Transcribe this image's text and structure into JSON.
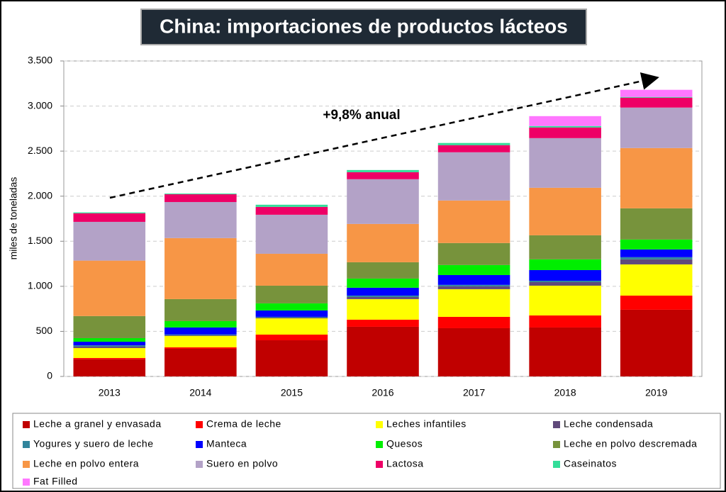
{
  "chart_data": {
    "type": "stacked-bar",
    "title": "China: importaciones de productos lácteos",
    "y_label": "miles de toneladas",
    "annotation": "+9,8% anual",
    "categories": [
      "2013",
      "2014",
      "2015",
      "2016",
      "2017",
      "2018",
      "2019"
    ],
    "ylim": [
      0,
      3500
    ],
    "yticks": [
      0,
      500,
      {
        "value": 1000,
        "label": "1.000"
      },
      {
        "value": 1500,
        "label": "1.500"
      },
      {
        "value": 2000,
        "label": "2.000"
      },
      {
        "value": 2500,
        "label": "2.500"
      },
      {
        "value": 3000,
        "label": "3.000"
      },
      {
        "value": 3500,
        "label": "3.500"
      }
    ],
    "grid": true,
    "series": [
      {
        "name": "Leche a granel y envasada",
        "color": "#c00000",
        "values": [
          190,
          307,
          401,
          551,
          535,
          543,
          740
        ]
      },
      {
        "name": "Crema de leche",
        "color": "#ff0000",
        "values": [
          15,
          16,
          63,
          79,
          126,
          134,
          157
        ]
      },
      {
        "name": "Leches infantiles",
        "color": "#ffff00",
        "values": [
          110,
          126,
          181,
          228,
          307,
          330,
          346
        ]
      },
      {
        "name": "Leche condensada",
        "color": "#604a7b",
        "values": [
          15,
          8,
          8,
          23,
          32,
          39,
          56
        ]
      },
      {
        "name": "Yogures y suero de leche",
        "color": "#31859c",
        "values": [
          15,
          8,
          8,
          16,
          16,
          16,
          24
        ]
      },
      {
        "name": "Manteca",
        "color": "#0000ff",
        "values": [
          40,
          78,
          71,
          87,
          109,
          118,
          86
        ]
      },
      {
        "name": "Quesos",
        "color": "#00ee00",
        "values": [
          40,
          71,
          79,
          102,
          111,
          119,
          110
        ]
      },
      {
        "name": "Leche en polvo descremada",
        "color": "#77933c",
        "values": [
          245,
          244,
          196,
          181,
          244,
          267,
          346
        ]
      },
      {
        "name": "Leche en polvo entera",
        "color": "#f79646",
        "values": [
          615,
          677,
          354,
          425,
          472,
          527,
          669
        ]
      },
      {
        "name": "Suero en polvo",
        "color": "#b3a2c7",
        "values": [
          430,
          400,
          433,
          496,
          535,
          551,
          449
        ]
      },
      {
        "name": "Lactosa",
        "color": "#ee0066",
        "values": [
          95,
          86,
          87,
          78,
          79,
          118,
          110
        ]
      },
      {
        "name": "Caseinatos",
        "color": "#33dd99",
        "values": [
          10,
          8,
          24,
          24,
          24,
          16,
          8
        ]
      },
      {
        "name": "Fat Filled",
        "color": "#ff77ff",
        "values": [
          0,
          0,
          0,
          0,
          0,
          110,
          79
        ]
      }
    ]
  }
}
